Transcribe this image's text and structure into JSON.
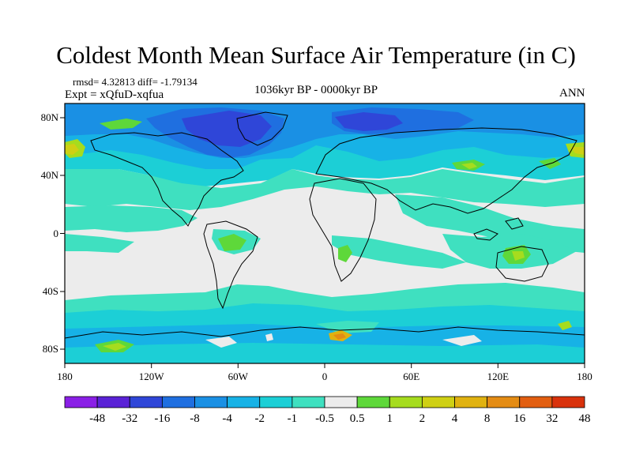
{
  "title": "Coldest Month Mean Surface Air Temperature (in C)",
  "stats": "rmsd= 4.32813 diff= -1.79134",
  "experiment": "Expt = xQfuD-xqfua",
  "period": "1036kyr BP - 0000kyr BP",
  "season": "ANN",
  "axes": {
    "x_ticks": [
      "180",
      "120W",
      "60W",
      "0",
      "60E",
      "120E",
      "180"
    ],
    "y_ticks": [
      "80N",
      "40N",
      "0",
      "40S",
      "80S"
    ]
  },
  "colorbar": {
    "colors": [
      "#8a1fe6",
      "#5a22d6",
      "#2f46d8",
      "#1f6fe0",
      "#1a90e4",
      "#17b2e6",
      "#1ccfd6",
      "#3fe0c0",
      "#ececec",
      "#5ed83a",
      "#a6dc1e",
      "#cfd014",
      "#e0b210",
      "#e48c14",
      "#e25e10",
      "#d9320c"
    ],
    "labels": [
      "-48",
      "-32",
      "-16",
      "-8",
      "-4",
      "-2",
      "-1",
      "-0.5",
      "0.5",
      "1",
      "2",
      "4",
      "8",
      "16",
      "32",
      "48"
    ]
  }
}
